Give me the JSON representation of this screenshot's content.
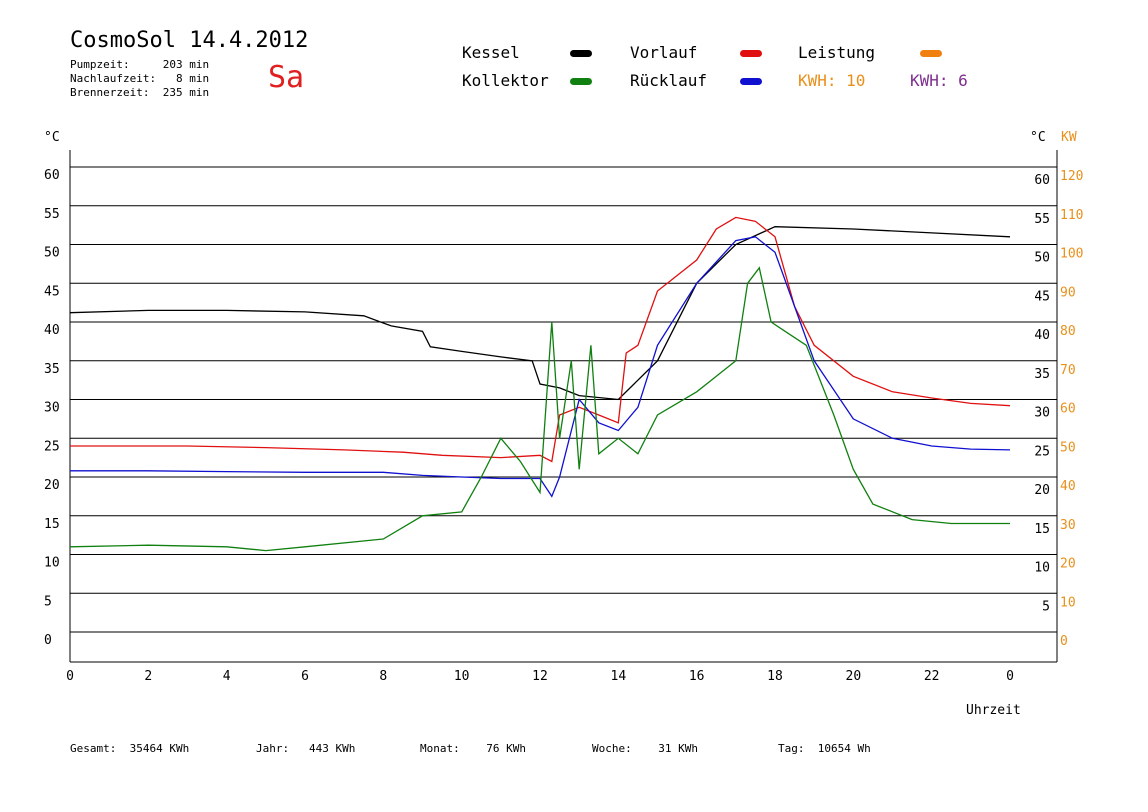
{
  "header": {
    "title": "CosmoSol 14.4.2012",
    "day": "Sa",
    "stats": [
      "Pumpzeit:     203 min",
      "Nachlaufzeit:   8 min",
      "Brennerzeit:  235 min"
    ]
  },
  "legend": {
    "items": [
      {
        "label": "Kessel",
        "color": "#000000"
      },
      {
        "label": "Vorlauf",
        "color": "#e01010"
      },
      {
        "label": "Leistung",
        "color": "#f08010"
      },
      {
        "label": "Kollektor",
        "color": "#108010"
      },
      {
        "label": "Rücklauf",
        "color": "#1010d0"
      }
    ],
    "kwh_orange": "KWH: 10",
    "kwh_purple": "KWH: 6"
  },
  "footer": {
    "items": [
      "Gesamt:  35464 KWh",
      "Jahr:   443 KWh",
      "Monat:    76 KWh",
      "Woche:    31 KWh",
      "Tag:  10654 Wh"
    ]
  },
  "chart_data": {
    "type": "line",
    "xlabel": "Uhrzeit",
    "ylabel_left": "°C",
    "ylabel_right_temp": "°C",
    "ylabel_right_power": "KW",
    "xlim": [
      0,
      24
    ],
    "ylim": [
      0,
      60
    ],
    "y2lim": [
      0,
      120
    ],
    "x_ticks": [
      "0",
      "2",
      "4",
      "6",
      "8",
      "10",
      "12",
      "14",
      "16",
      "18",
      "20",
      "22",
      "0"
    ],
    "y_ticks": [
      "0",
      "5",
      "10",
      "15",
      "20",
      "25",
      "30",
      "35",
      "40",
      "45",
      "50",
      "55",
      "60"
    ],
    "y_ticks_right": [
      "5",
      "10",
      "15",
      "20",
      "25",
      "30",
      "35",
      "40",
      "45",
      "50",
      "55",
      "60"
    ],
    "y2_ticks": [
      "0",
      "10",
      "20",
      "30",
      "40",
      "50",
      "60",
      "70",
      "80",
      "90",
      "100",
      "110",
      "120"
    ],
    "grid": true,
    "series": [
      {
        "name": "Kessel",
        "color": "#000000",
        "points": [
          [
            0,
            41.2
          ],
          [
            2,
            41.5
          ],
          [
            4,
            41.5
          ],
          [
            6,
            41.3
          ],
          [
            7.5,
            40.8
          ],
          [
            8.2,
            39.5
          ],
          [
            9,
            38.8
          ],
          [
            9.2,
            36.8
          ],
          [
            10,
            36.2
          ],
          [
            11,
            35.5
          ],
          [
            11.8,
            35
          ],
          [
            12,
            32
          ],
          [
            12.5,
            31.5
          ],
          [
            13,
            30.5
          ],
          [
            14,
            30
          ],
          [
            15,
            35
          ],
          [
            16,
            45
          ],
          [
            17,
            50
          ],
          [
            18,
            52.3
          ],
          [
            20,
            52
          ],
          [
            22,
            51.5
          ],
          [
            24,
            51
          ]
        ]
      },
      {
        "name": "Vorlauf",
        "color": "#e01010",
        "points": [
          [
            0,
            24
          ],
          [
            3,
            24
          ],
          [
            5,
            23.8
          ],
          [
            7,
            23.5
          ],
          [
            8.5,
            23.2
          ],
          [
            9.5,
            22.8
          ],
          [
            11,
            22.5
          ],
          [
            12,
            22.8
          ],
          [
            12.3,
            22
          ],
          [
            12.5,
            28
          ],
          [
            13,
            29
          ],
          [
            13.5,
            28
          ],
          [
            14,
            27
          ],
          [
            14.2,
            36
          ],
          [
            14.5,
            37
          ],
          [
            15,
            44
          ],
          [
            15.5,
            46
          ],
          [
            16,
            48
          ],
          [
            16.5,
            52
          ],
          [
            17,
            53.5
          ],
          [
            17.5,
            53
          ],
          [
            18,
            51
          ],
          [
            18.5,
            42
          ],
          [
            19,
            37
          ],
          [
            20,
            33
          ],
          [
            21,
            31
          ],
          [
            22,
            30.2
          ],
          [
            23,
            29.5
          ],
          [
            24,
            29.2
          ]
        ]
      },
      {
        "name": "Rücklauf",
        "color": "#1010d0",
        "points": [
          [
            0,
            20.8
          ],
          [
            2,
            20.8
          ],
          [
            4,
            20.7
          ],
          [
            6,
            20.6
          ],
          [
            8,
            20.6
          ],
          [
            9,
            20.2
          ],
          [
            10,
            20
          ],
          [
            11,
            19.8
          ],
          [
            12,
            19.8
          ],
          [
            12.3,
            17.5
          ],
          [
            12.5,
            20
          ],
          [
            13,
            30
          ],
          [
            13.5,
            27
          ],
          [
            14,
            26
          ],
          [
            14.5,
            29
          ],
          [
            15,
            37
          ],
          [
            16,
            45
          ],
          [
            17,
            50.5
          ],
          [
            17.5,
            51
          ],
          [
            18,
            49
          ],
          [
            18.5,
            42
          ],
          [
            19,
            35
          ],
          [
            20,
            27.5
          ],
          [
            21,
            25
          ],
          [
            22,
            24
          ],
          [
            23,
            23.6
          ],
          [
            24,
            23.5
          ]
        ]
      },
      {
        "name": "Kollektor",
        "color": "#108010",
        "points": [
          [
            0,
            11
          ],
          [
            2,
            11.2
          ],
          [
            4,
            11
          ],
          [
            5,
            10.5
          ],
          [
            6,
            11
          ],
          [
            8,
            12
          ],
          [
            9,
            15
          ],
          [
            10,
            15.5
          ],
          [
            10.5,
            20
          ],
          [
            11,
            25
          ],
          [
            11.5,
            22
          ],
          [
            12,
            18
          ],
          [
            12.3,
            40
          ],
          [
            12.5,
            25
          ],
          [
            12.8,
            35
          ],
          [
            13,
            21
          ],
          [
            13.3,
            37
          ],
          [
            13.5,
            23
          ],
          [
            14,
            25
          ],
          [
            14.5,
            23
          ],
          [
            15,
            28
          ],
          [
            16,
            31
          ],
          [
            16.5,
            33
          ],
          [
            17,
            35
          ],
          [
            17.3,
            45
          ],
          [
            17.6,
            47
          ],
          [
            17.9,
            40
          ],
          [
            18.2,
            39
          ],
          [
            18.8,
            37
          ],
          [
            19.5,
            28
          ],
          [
            20,
            21
          ],
          [
            20.5,
            16.5
          ],
          [
            21.5,
            14.5
          ],
          [
            22.5,
            14
          ],
          [
            24,
            14
          ]
        ]
      }
    ]
  }
}
